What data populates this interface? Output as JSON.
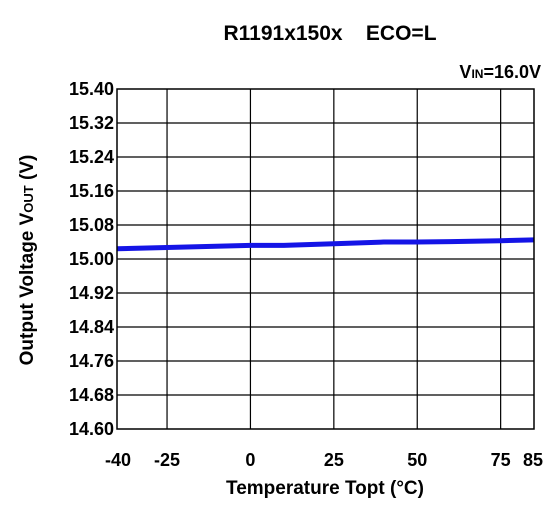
{
  "chart_data": {
    "type": "line",
    "title": "R1191x150x    ECO=L",
    "annotation": {
      "prefix": "V",
      "subscript": "IN",
      "suffix": "=16.0V"
    },
    "xlabel": "Temperature Topt (°C)",
    "ylabel": {
      "prefix": "Output Voltage V",
      "subscript": "OUT",
      "suffix": " (V)"
    },
    "xlim": [
      -40,
      85
    ],
    "ylim": [
      14.6,
      15.4
    ],
    "x_ticks": [
      -40,
      -25,
      0,
      25,
      50,
      75,
      85
    ],
    "x_tick_labels": [
      "-40",
      "-25",
      "0",
      "25",
      "50",
      "75",
      "85"
    ],
    "y_ticks": [
      14.6,
      14.68,
      14.76,
      14.84,
      14.92,
      15.0,
      15.08,
      15.16,
      15.24,
      15.32,
      15.4
    ],
    "y_tick_labels": [
      "14.60",
      "14.68",
      "14.76",
      "14.84",
      "14.92",
      "15.00",
      "15.08",
      "15.16",
      "15.24",
      "15.32",
      "15.40"
    ],
    "grid": true,
    "series": [
      {
        "color": "#1414e6",
        "x": [
          -40,
          -25,
          0,
          10,
          25,
          40,
          50,
          60,
          75,
          85
        ],
        "y": [
          15.024,
          15.027,
          15.032,
          15.032,
          15.036,
          15.04,
          15.04,
          15.041,
          15.043,
          15.045
        ]
      }
    ]
  }
}
